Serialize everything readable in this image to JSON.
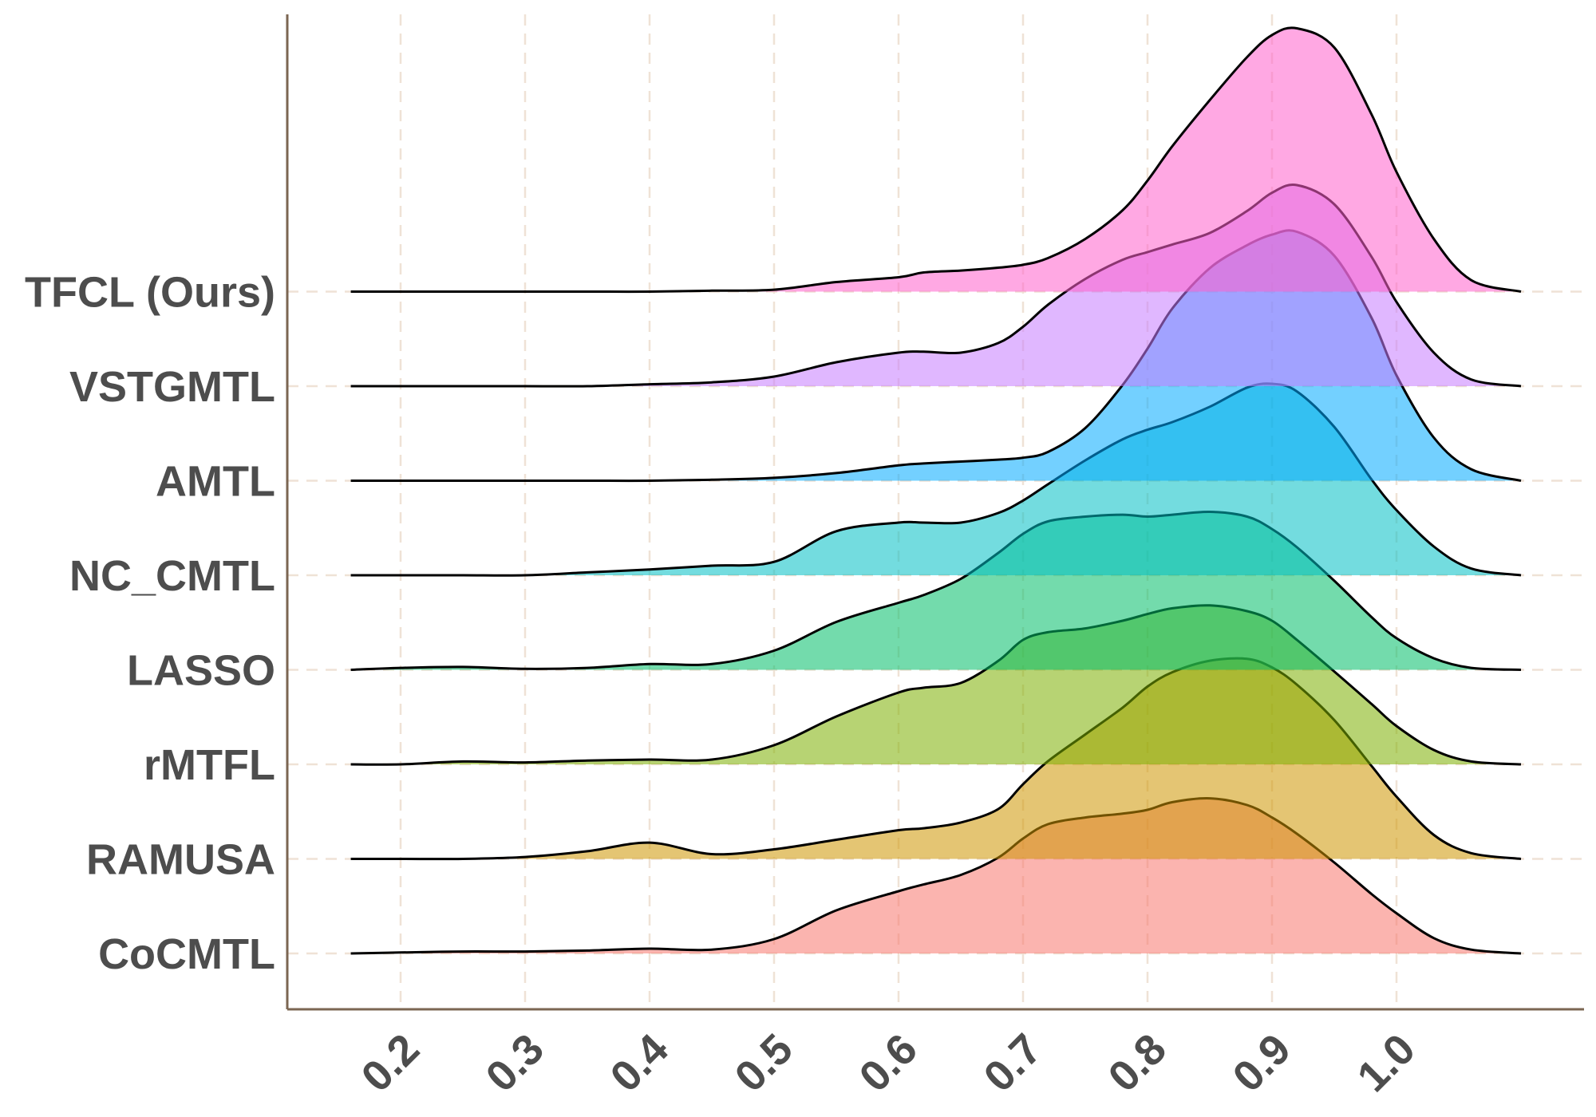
{
  "chart_data": {
    "type": "ridgeline",
    "title": "",
    "xlabel": "",
    "ylabel": "",
    "xlim": [
      0.11,
      1.15
    ],
    "x_ticks": [
      "0.2",
      "0.3",
      "0.4",
      "0.5",
      "0.6",
      "0.7",
      "0.8",
      "0.9",
      "1.0"
    ],
    "x_tick_values": [
      0.2,
      0.3,
      0.4,
      0.5,
      0.6,
      0.7,
      0.8,
      0.9,
      1.0
    ],
    "grid": "vertical dashed + baseline dashed",
    "legend": "none",
    "x": [
      0.16,
      0.2,
      0.25,
      0.3,
      0.35,
      0.4,
      0.45,
      0.5,
      0.55,
      0.6,
      0.62,
      0.65,
      0.68,
      0.7,
      0.72,
      0.75,
      0.78,
      0.8,
      0.82,
      0.85,
      0.88,
      0.9,
      0.92,
      0.95,
      0.98,
      1.0,
      1.03,
      1.06,
      1.1
    ],
    "series": [
      {
        "name": "CoCMTL",
        "color": "#F8766D",
        "values": [
          0,
          0.01,
          0.02,
          0.02,
          0.03,
          0.05,
          0.04,
          0.15,
          0.45,
          0.65,
          0.72,
          0.82,
          1.0,
          1.2,
          1.35,
          1.42,
          1.46,
          1.5,
          1.58,
          1.62,
          1.55,
          1.42,
          1.25,
          0.95,
          0.62,
          0.42,
          0.16,
          0.04,
          0
        ]
      },
      {
        "name": "RAMUSA",
        "color": "#CD9600",
        "values": [
          0,
          0,
          0,
          0.02,
          0.08,
          0.17,
          0.05,
          0.1,
          0.2,
          0.3,
          0.32,
          0.38,
          0.52,
          0.78,
          1.02,
          1.3,
          1.58,
          1.8,
          1.95,
          2.07,
          2.09,
          2.0,
          1.82,
          1.45,
          0.97,
          0.65,
          0.25,
          0.06,
          0
        ]
      },
      {
        "name": "rMTFL",
        "color": "#7CAE00",
        "values": [
          0,
          0,
          0.03,
          0.02,
          0.04,
          0.05,
          0.05,
          0.2,
          0.5,
          0.75,
          0.8,
          0.85,
          1.08,
          1.3,
          1.38,
          1.42,
          1.5,
          1.57,
          1.63,
          1.66,
          1.6,
          1.5,
          1.3,
          0.97,
          0.63,
          0.4,
          0.15,
          0.03,
          0
        ]
      },
      {
        "name": "LASSO",
        "color": "#00BE67",
        "values": [
          0,
          0.02,
          0.03,
          0.01,
          0.02,
          0.06,
          0.06,
          0.2,
          0.5,
          0.7,
          0.78,
          0.95,
          1.22,
          1.42,
          1.55,
          1.6,
          1.62,
          1.6,
          1.62,
          1.65,
          1.6,
          1.47,
          1.28,
          0.93,
          0.55,
          0.33,
          0.12,
          0.02,
          0
        ]
      },
      {
        "name": "NC_CMTL",
        "color": "#00BFC4",
        "values": [
          0,
          0,
          0,
          0,
          0.03,
          0.06,
          0.1,
          0.14,
          0.46,
          0.55,
          0.55,
          0.55,
          0.65,
          0.78,
          0.95,
          1.2,
          1.42,
          1.52,
          1.6,
          1.76,
          1.96,
          2.0,
          1.92,
          1.55,
          1.0,
          0.68,
          0.3,
          0.07,
          0
        ]
      },
      {
        "name": "AMTL",
        "color": "#00A9FF",
        "values": [
          0,
          0,
          0,
          0,
          0,
          0,
          0.01,
          0.03,
          0.08,
          0.16,
          0.18,
          0.2,
          0.22,
          0.24,
          0.3,
          0.55,
          1.0,
          1.38,
          1.8,
          2.22,
          2.46,
          2.57,
          2.6,
          2.35,
          1.7,
          1.1,
          0.45,
          0.12,
          0
        ]
      },
      {
        "name": "VSTGMTL",
        "color": "#C77CFF",
        "values": [
          0,
          0,
          0,
          0,
          0,
          0.02,
          0.04,
          0.1,
          0.25,
          0.35,
          0.36,
          0.35,
          0.45,
          0.62,
          0.85,
          1.12,
          1.32,
          1.4,
          1.48,
          1.6,
          1.83,
          2.02,
          2.1,
          1.9,
          1.35,
          0.88,
          0.35,
          0.07,
          0
        ]
      },
      {
        "name": "TFCL (Ours)",
        "color": "#FF61CC",
        "values": [
          0,
          0,
          0,
          0,
          0,
          0,
          0.01,
          0.02,
          0.1,
          0.15,
          0.2,
          0.22,
          0.25,
          0.28,
          0.35,
          0.55,
          0.85,
          1.16,
          1.52,
          2.0,
          2.45,
          2.68,
          2.75,
          2.55,
          1.85,
          1.25,
          0.55,
          0.12,
          0
        ]
      }
    ]
  }
}
